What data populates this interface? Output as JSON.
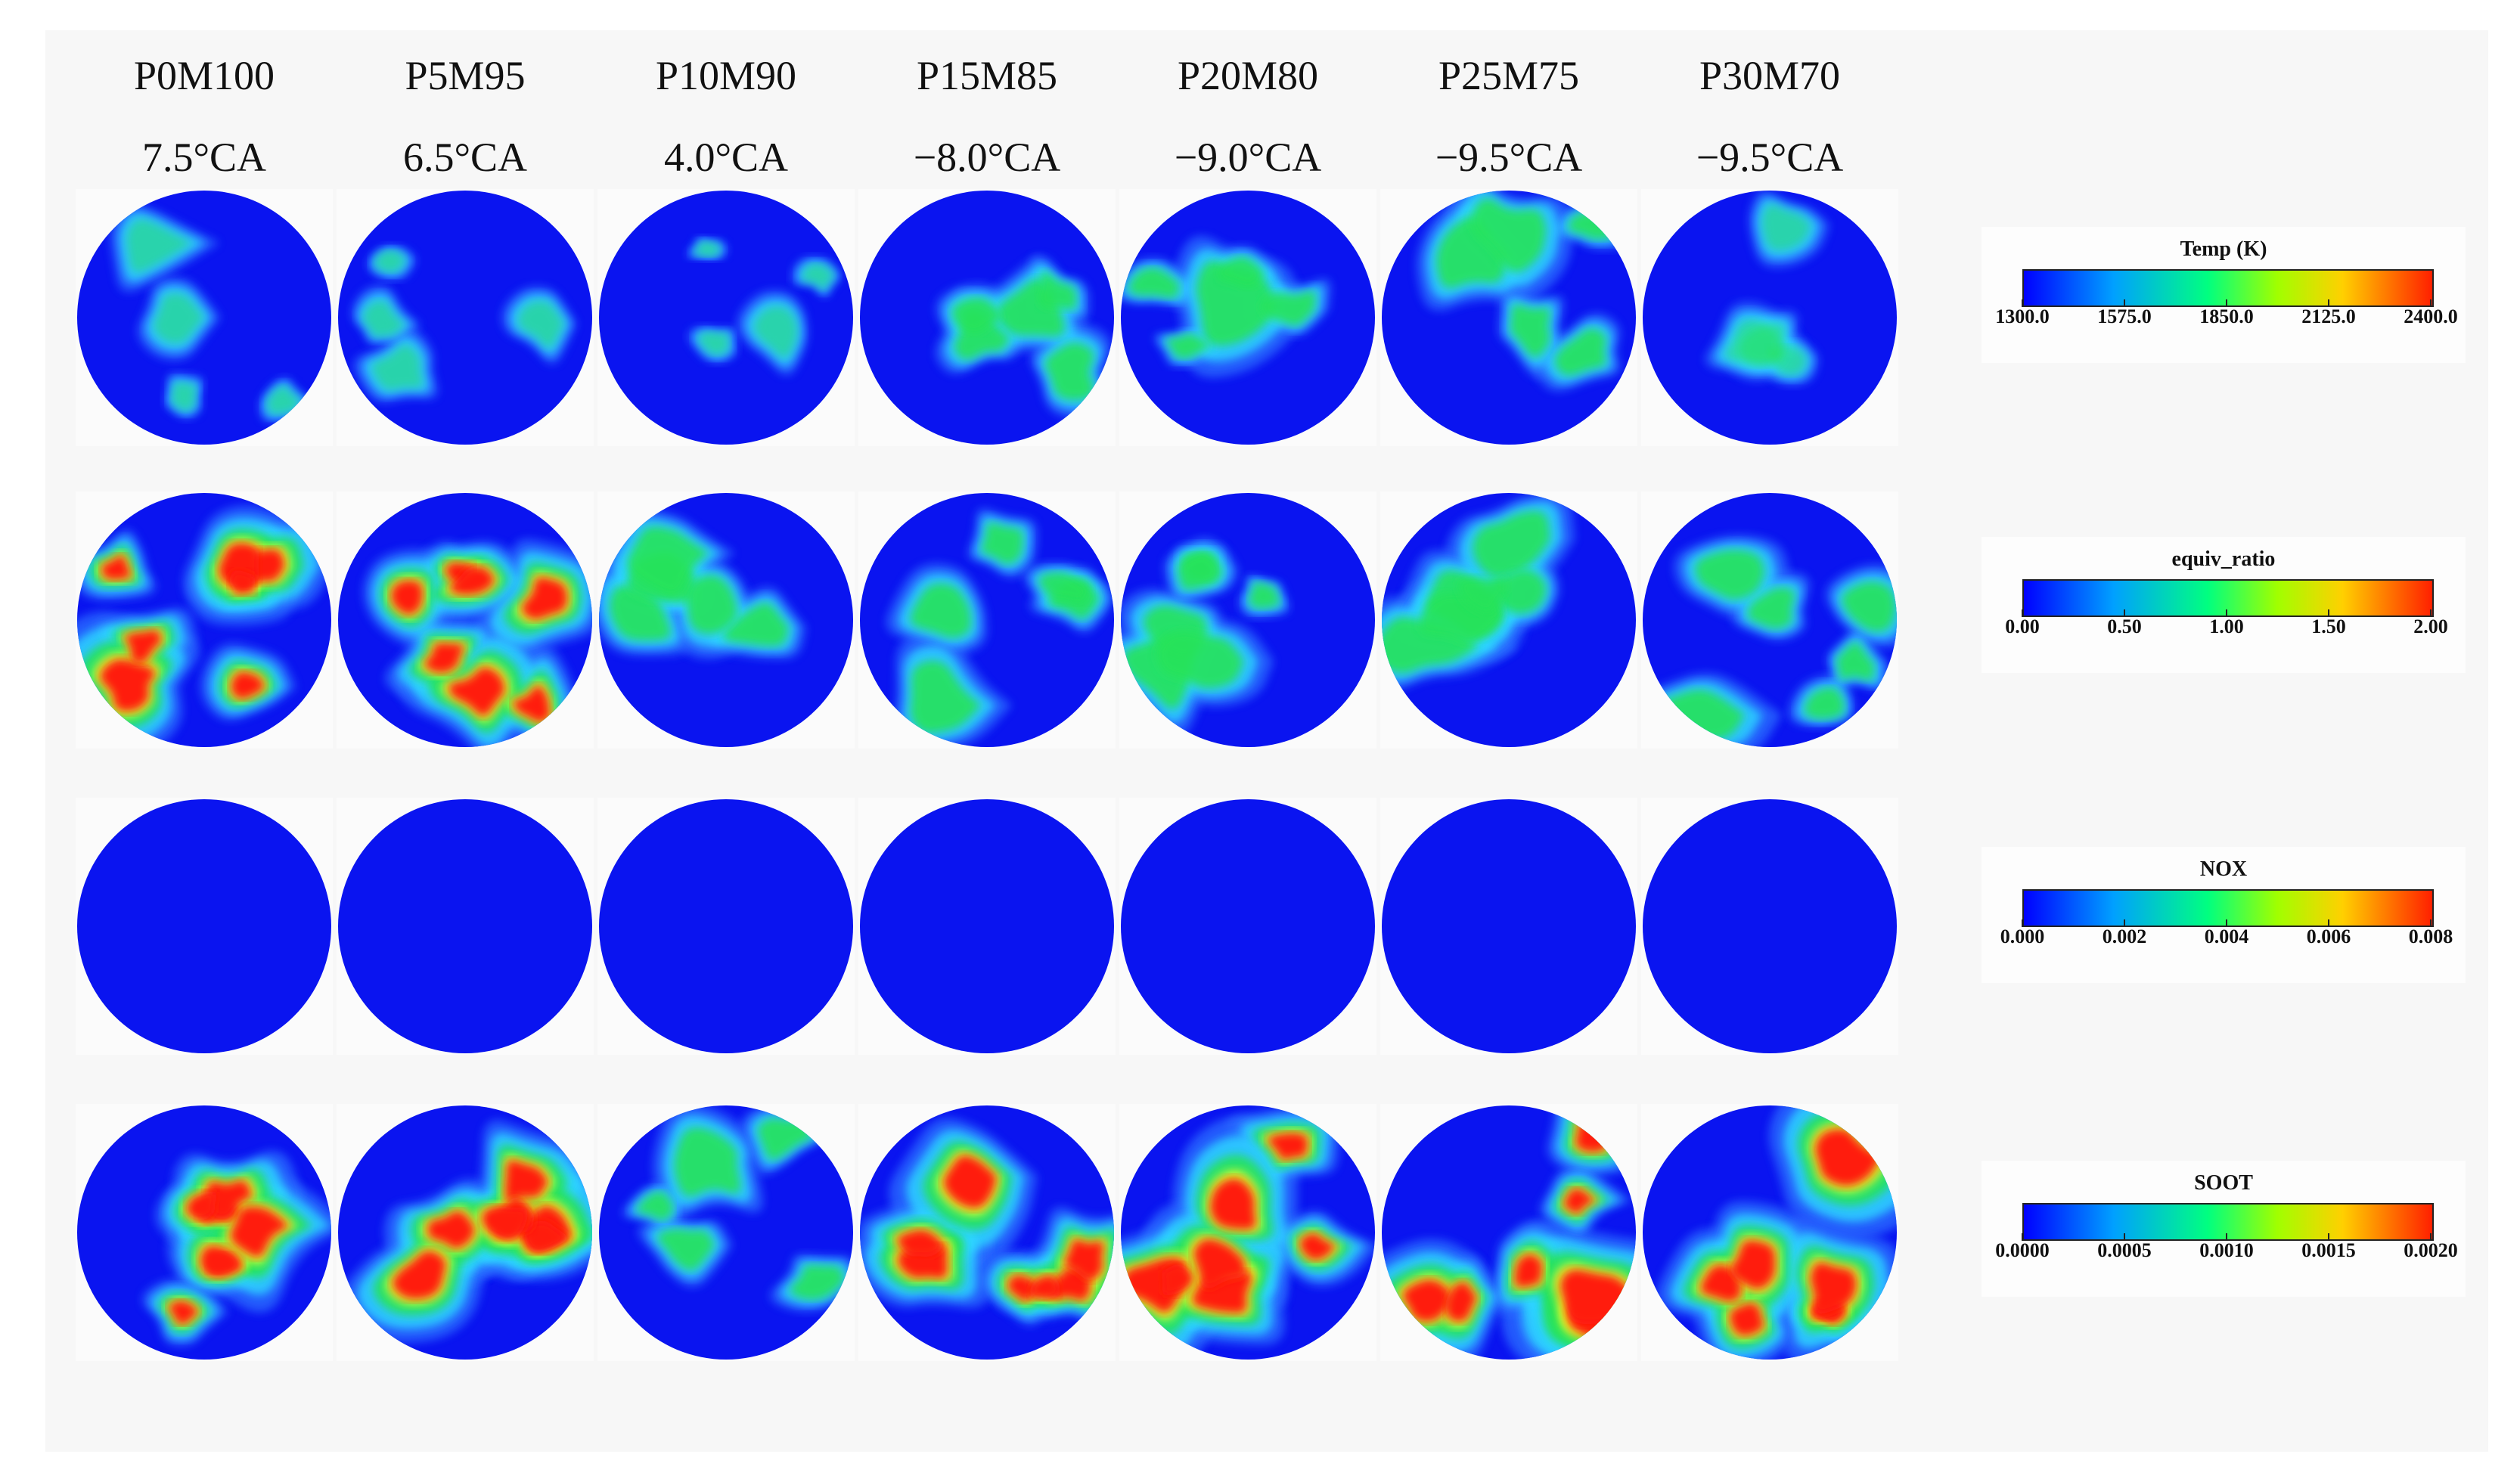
{
  "columns": [
    {
      "case": "P0M100",
      "angle": "7.5°CA"
    },
    {
      "case": "P5M95",
      "angle": "6.5°CA"
    },
    {
      "case": "P10M90",
      "angle": "4.0°CA"
    },
    {
      "case": "P15M85",
      "angle": "−8.0°CA"
    },
    {
      "case": "P20M80",
      "angle": "−9.0°CA"
    },
    {
      "case": "P25M75",
      "angle": "−9.5°CA"
    },
    {
      "case": "P30M70",
      "angle": "−9.5°CA"
    }
  ],
  "rows": [
    {
      "key": "temp"
    },
    {
      "key": "equiv_ratio"
    },
    {
      "key": "nox"
    },
    {
      "key": "soot"
    }
  ],
  "legends": [
    {
      "title": "Temp (K)",
      "ticks": [
        "1300.0",
        "1575.0",
        "1850.0",
        "2125.0",
        "2400.0"
      ]
    },
    {
      "title": "equiv_ratio",
      "ticks": [
        "0.00",
        "0.50",
        "1.00",
        "1.50",
        "2.00"
      ]
    },
    {
      "title": "NOX",
      "ticks": [
        "0.000",
        "0.002",
        "0.004",
        "0.006",
        "0.008"
      ]
    },
    {
      "title": "SOOT",
      "ticks": [
        "0.0000",
        "0.0005",
        "0.0010",
        "0.0015",
        "0.0020"
      ]
    }
  ],
  "colors": {
    "background_blue": "#0a14f0",
    "low": "#2a6cff",
    "cyan": "#2fd6ff",
    "green": "#28e35a",
    "yellow": "#e7ff2b",
    "red": "#ff1e0f"
  }
}
